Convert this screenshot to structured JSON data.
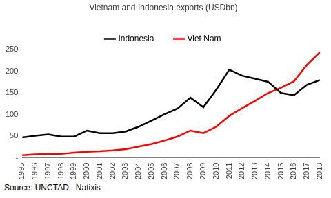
{
  "chart_data": {
    "type": "line",
    "title": "Vietnam and Indonesia exports (USDbn)",
    "source": "Source: UNCTAD,  Natixis",
    "categories": [
      "1995",
      "1996",
      "1997",
      "1998",
      "1999",
      "2000",
      "2001",
      "2002",
      "2003",
      "2004",
      "2005",
      "2006",
      "2007",
      "2008",
      "2009",
      "2010",
      "2011",
      "2012",
      "2013",
      "2014",
      "2015",
      "2016",
      "2017",
      "2018"
    ],
    "series": [
      {
        "name": "Indonesia",
        "color": "#000000",
        "values": [
          47,
          51,
          54,
          49,
          49,
          63,
          57,
          57,
          61,
          72,
          86,
          101,
          114,
          139,
          117,
          158,
          204,
          190,
          183,
          176,
          150,
          145,
          169,
          180
        ]
      },
      {
        "name": "Viet Nam",
        "color": "#ff0000",
        "values": [
          6,
          8,
          9,
          9,
          12,
          14,
          15,
          17,
          20,
          26,
          32,
          40,
          49,
          63,
          57,
          72,
          97,
          115,
          132,
          150,
          162,
          177,
          215,
          244
        ]
      }
    ],
    "ylim": [
      0,
      250
    ],
    "yticks": [
      {
        "value": 0,
        "label": "-"
      },
      50,
      100,
      150,
      200,
      250
    ],
    "grid": false,
    "legend": "top"
  }
}
